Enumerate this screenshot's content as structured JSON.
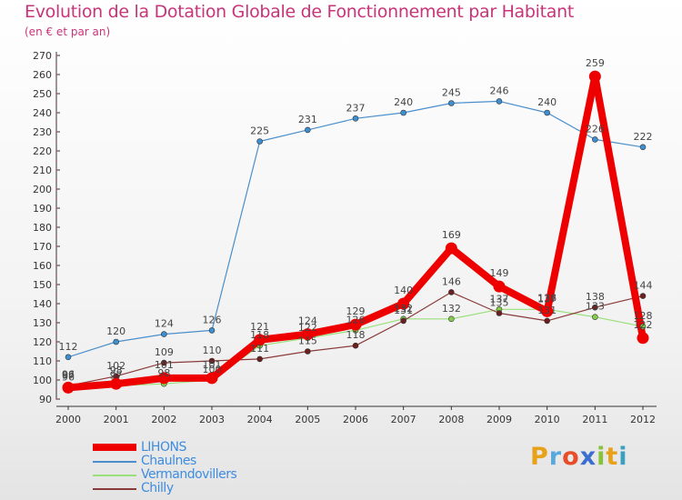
{
  "title": "Evolution de la Dotation Globale de Fonctionnement par Habitant",
  "subtitle": "(en € et par an)",
  "brand": {
    "text": "Proxiti",
    "letters": [
      "P",
      "r",
      "o",
      "x",
      "i",
      "t",
      "i"
    ],
    "colors": [
      "#e8a21a",
      "#59a8dd",
      "#e84d2a",
      "#3a6fd0",
      "#86c23a",
      "#e8a21a",
      "#3aa0c0"
    ]
  },
  "chart_data": {
    "type": "line",
    "title": "Evolution de la Dotation Globale de Fonctionnement par Habitant",
    "subtitle": "(en € et par an)",
    "xlabel": "",
    "ylabel": "",
    "x": [
      "2000",
      "2001",
      "2002",
      "2003",
      "2004",
      "2005",
      "2006",
      "2007",
      "2008",
      "2009",
      "2010",
      "2011",
      "2012"
    ],
    "ylim": [
      90,
      270
    ],
    "yticks": [
      90,
      100,
      110,
      120,
      130,
      140,
      150,
      160,
      170,
      180,
      190,
      200,
      210,
      220,
      230,
      240,
      250,
      260,
      270
    ],
    "grid": false,
    "legend_position": "bottom-left",
    "series": [
      {
        "name": "Chaulnes",
        "color": "#4a8fcc",
        "marker": "#3e8fd0",
        "width": 1.2,
        "values": [
          112,
          120,
          124,
          126,
          225,
          231,
          237,
          240,
          245,
          246,
          240,
          226,
          222
        ]
      },
      {
        "name": "Vermandovillers",
        "color": "#99e07a",
        "marker": "#86cc4a",
        "width": 1.2,
        "values": [
          96,
          97,
          98,
          100,
          118,
          122,
          126,
          132,
          132,
          137,
          137,
          133,
          128
        ]
      },
      {
        "name": "Chilly",
        "color": "#8a3a3a",
        "marker": "#6b1f1f",
        "width": 1.2,
        "values": [
          97,
          102,
          109,
          110,
          111,
          115,
          118,
          131,
          146,
          135,
          131,
          138,
          144
        ]
      },
      {
        "name": "LIHONS",
        "color": "#ee0000",
        "marker": "#ee0000",
        "width": 8,
        "values": [
          96,
          98,
          101,
          101,
          121,
          124,
          129,
          140,
          169,
          149,
          136,
          259,
          122
        ]
      }
    ],
    "data_labels": [
      {
        "series": "Chaulnes",
        "labels": [
          "112",
          "120",
          "124",
          "126",
          "225",
          "231",
          "237",
          "240",
          "245",
          "246",
          "240",
          "226",
          "222"
        ]
      },
      {
        "series": "Vermandovillers",
        "labels": [
          "96",
          "97",
          "98",
          "100",
          "118",
          "122",
          "126",
          "132",
          "132",
          "137",
          "137",
          "133",
          "128"
        ]
      },
      {
        "series": "Chilly",
        "labels": [
          "97",
          "102",
          "109",
          "110",
          "111",
          "115",
          "118",
          "131",
          "146",
          "135",
          "131",
          "138",
          "144"
        ]
      },
      {
        "series": "LIHONS",
        "labels": [
          "96",
          "98",
          "101",
          "101",
          "121",
          "124",
          "129",
          "140",
          "169",
          "149",
          "136",
          "259",
          "122"
        ]
      }
    ]
  },
  "legend": [
    {
      "label": "LIHONS",
      "color": "#ee0000",
      "thickness": 8
    },
    {
      "label": "Chaulnes",
      "color": "#4a8fcc",
      "thickness": 2
    },
    {
      "label": "Vermandovillers",
      "color": "#99e07a",
      "thickness": 2
    },
    {
      "label": "Chilly",
      "color": "#8a3a3a",
      "thickness": 2
    }
  ]
}
